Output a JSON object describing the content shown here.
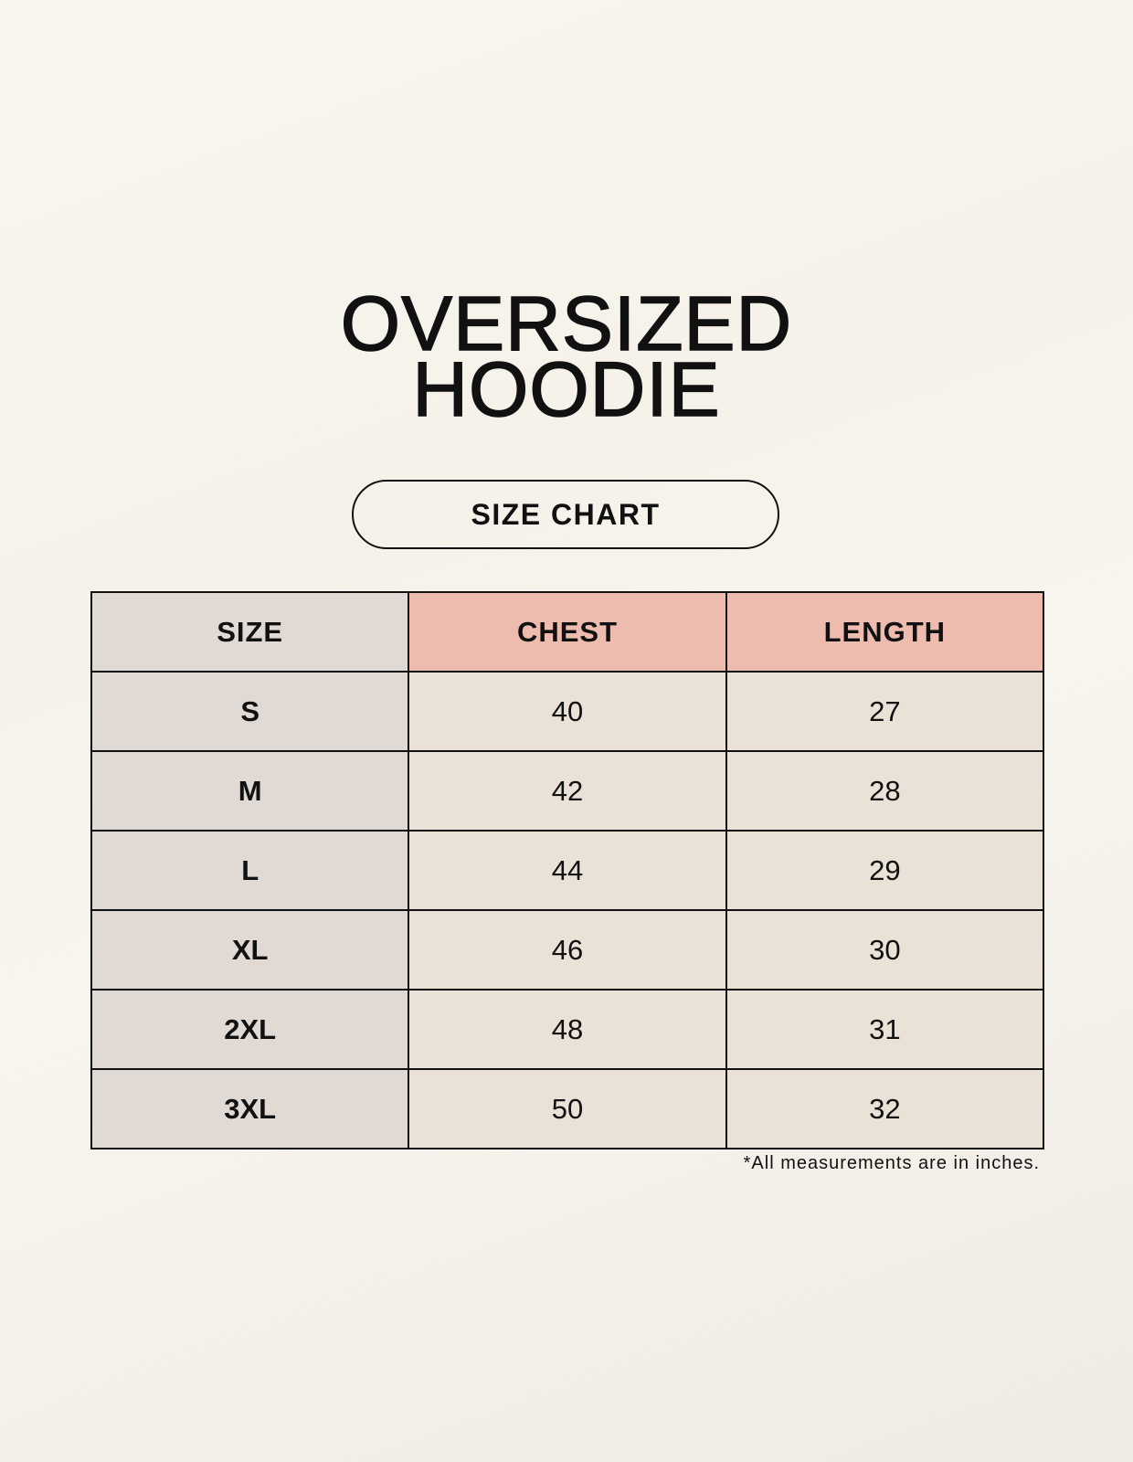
{
  "title": {
    "line1": "OVERSIZED",
    "line2": "HOODIE"
  },
  "subtitle": "SIZE CHART",
  "table": {
    "headers": [
      "SIZE",
      "CHEST",
      "LENGTH"
    ],
    "rows": [
      [
        "S",
        "40",
        "27"
      ],
      [
        "M",
        "42",
        "28"
      ],
      [
        "L",
        "44",
        "29"
      ],
      [
        "XL",
        "46",
        "30"
      ],
      [
        "2XL",
        "48",
        "31"
      ],
      [
        "3XL",
        "50",
        "32"
      ]
    ]
  },
  "footnote": "*All measurements are in inches.",
  "colors": {
    "size_column": "#e1d9d3",
    "header_accent": "#edbcaf",
    "value_cells": "#ebe2d7"
  }
}
